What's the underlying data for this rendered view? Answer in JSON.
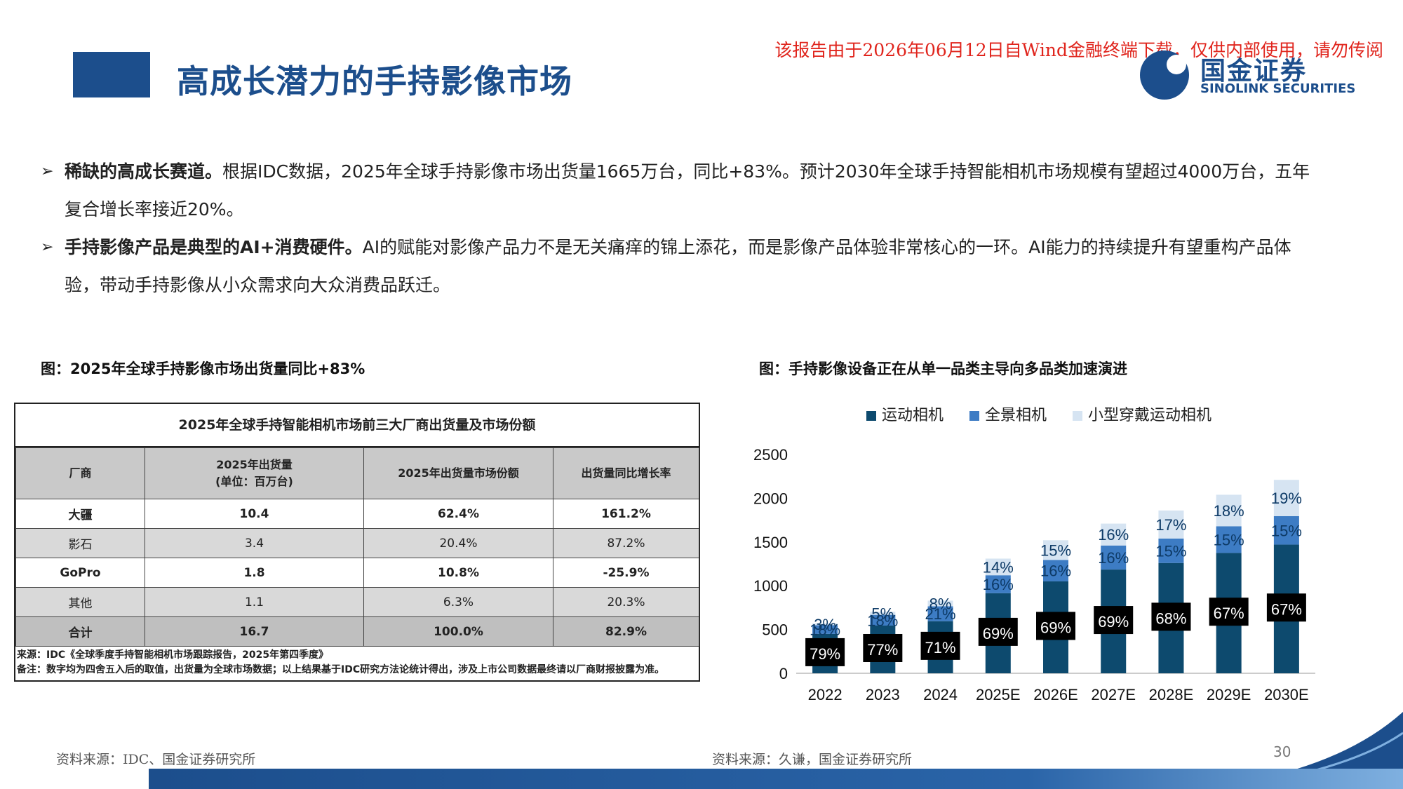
{
  "header": {
    "title": "高成长潜力的手持影像市场",
    "watermark": "该报告由于2026年06月12日自Wind金融终端下载，仅供内部使用，请勿传阅",
    "logo_cn": "国金证券",
    "logo_en": "SINOLINK SECURITIES"
  },
  "bullets": [
    {
      "bold": "稀缺的高成长赛道。",
      "text": "根据IDC数据，2025年全球手持影像市场出货量1665万台，同比+83%。预计2030年全球手持智能相机市场规模有望超过4000万台，五年复合增长率接近20%。"
    },
    {
      "bold": "手持影像产品是典型的AI+消费硬件。",
      "text": "AI的赋能对影像产品力不是无关痛痒的锦上添花，而是影像产品体验非常核心的一环。AI能力的持续提升有望重构产品体验，带动手持影像从小众需求向大众消费品跃迁。"
    }
  ],
  "left_figure": {
    "caption": "图：2025年全球手持影像市场出货量同比+83%",
    "table_title": "2025年全球手持智能相机市场前三大厂商出货量及市场份额",
    "headers": [
      "厂商",
      "2025年出货量",
      "(单位：百万台)",
      "2025年出货量市场份额",
      "出货量同比增长率"
    ],
    "rows": [
      [
        "大疆",
        "10.4",
        "62.4%",
        "161.2%"
      ],
      [
        "影石",
        "3.4",
        "20.4%",
        "87.2%"
      ],
      [
        "GoPro",
        "1.8",
        "10.8%",
        "-25.9%"
      ],
      [
        "其他",
        "1.1",
        "6.3%",
        "20.3%"
      ],
      [
        "合计",
        "16.7",
        "100.0%",
        "82.9%"
      ]
    ],
    "note_source": "来源：IDC《全球季度手持智能相机市场跟踪报告，2025年第四季度》",
    "note_remark": "备注：数字均为四舍五入后的取值，出货量为全球市场数据；以上结果基于IDC研究方法论统计得出，涉及上市公司数据最终请以厂商财报披露为准。"
  },
  "right_figure": {
    "caption": "图：手持影像设备正在从单一品类主导向多品类加速演进"
  },
  "chart_data": {
    "type": "bar",
    "stacked": true,
    "categories": [
      "2022",
      "2023",
      "2024",
      "2025E",
      "2026E",
      "2027E",
      "2028E",
      "2029E",
      "2030E"
    ],
    "ylim": [
      0,
      2500
    ],
    "yticks": [
      "0",
      "500",
      "1000",
      "1500",
      "2000",
      "2500"
    ],
    "legend_position": "top",
    "series": [
      {
        "name": "运动相机",
        "color": "#0d4a6e",
        "values": [
          450,
          545,
          595,
          915,
          1050,
          1185,
          1260,
          1375,
          1470
        ],
        "labels": [
          "79%",
          "77%",
          "71%",
          "69%",
          "69%",
          "69%",
          "68%",
          "67%",
          "67%"
        ]
      },
      {
        "name": "全景相机",
        "color": "#3d7cc4",
        "values": [
          100,
          123,
          170,
          205,
          245,
          275,
          280,
          305,
          325
        ],
        "labels": [
          "18%",
          "18%",
          "21%",
          "16%",
          "16%",
          "16%",
          "15%",
          "15%",
          "15%"
        ]
      },
      {
        "name": "小型穿戴运动相机",
        "color": "#d6e4f2",
        "values": [
          20,
          35,
          65,
          190,
          225,
          250,
          320,
          360,
          415
        ],
        "labels": [
          "3%",
          "5%",
          "8%",
          "14%",
          "15%",
          "16%",
          "17%",
          "18%",
          "19%"
        ]
      }
    ]
  },
  "footer": {
    "source_left": "资料来源：IDC、国金证券研究所",
    "source_right": "资料来源：久谦，国金证券研究所",
    "page_number": "30"
  }
}
